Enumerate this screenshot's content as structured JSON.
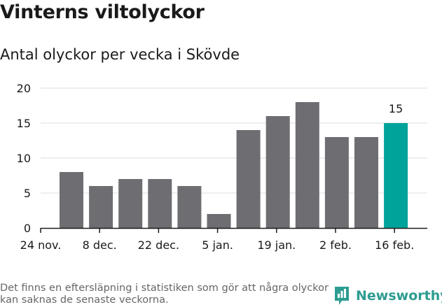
{
  "title": "Vinterns viltolyckor",
  "subtitle": "Antal olyckor per vecka i Skövde",
  "footnote": "Det finns en eftersläpning i statistiken som gör att några olyckor kan saknas de senaste veckorna.",
  "brand": {
    "name": "Newsworthy",
    "icon": "newsworthy-logo-icon",
    "color": "#2e9c91"
  },
  "chart_data": {
    "type": "bar",
    "x_tick_labels": [
      "24 nov.",
      "8 dec.",
      "22 dec.",
      "5 jan.",
      "19 jan.",
      "2 feb.",
      "16 feb."
    ],
    "values": [
      8,
      6,
      7,
      7,
      6,
      2,
      14,
      16,
      18,
      13,
      13,
      15
    ],
    "ylim": [
      0,
      20
    ],
    "yticks": [
      0,
      5,
      10,
      15,
      20
    ],
    "grid": true,
    "bar_color": "#6e6d71",
    "highlight_color": "#00a39a",
    "highlight_index": 11,
    "data_labels": [
      {
        "index": 11,
        "text": "15"
      }
    ]
  }
}
